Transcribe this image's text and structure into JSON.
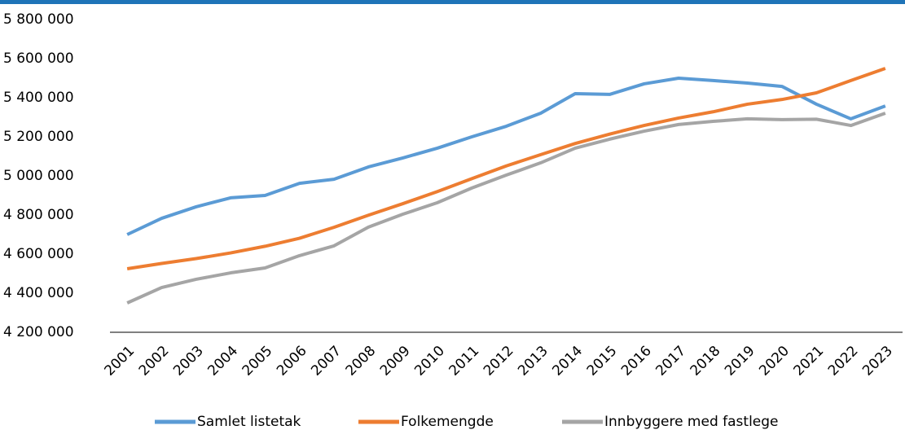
{
  "chart_data": {
    "type": "line",
    "categories": [
      "2001",
      "2002",
      "2003",
      "2004",
      "2005",
      "2006",
      "2007",
      "2008",
      "2009",
      "2010",
      "2011",
      "2012",
      "2013",
      "2014",
      "2015",
      "2016",
      "2017",
      "2018",
      "2019",
      "2020",
      "2021",
      "2022",
      "2023"
    ],
    "series": [
      {
        "name": "Samlet listetak",
        "color": "#5b9bd5",
        "values": [
          4700000,
          4783000,
          4842000,
          4888000,
          4900000,
          4962000,
          4983000,
          5046000,
          5092000,
          5142000,
          5200000,
          5254000,
          5321000,
          5421000,
          5417000,
          5471000,
          5500000,
          5488000,
          5475000,
          5458000,
          5367000,
          5292000,
          5358000
        ]
      },
      {
        "name": "Folkemengde",
        "color": "#ed7d31",
        "values": [
          4525000,
          4552000,
          4577000,
          4606000,
          4640000,
          4681000,
          4737000,
          4799000,
          4858000,
          4920000,
          4986000,
          5051000,
          5109000,
          5166000,
          5214000,
          5258000,
          5296000,
          5328000,
          5367000,
          5391000,
          5425000,
          5488000,
          5550000
        ]
      },
      {
        "name": "Innbyggere med fastlege",
        "color": "#a5a5a5",
        "values": [
          4350000,
          4429000,
          4471000,
          4504000,
          4529000,
          4592000,
          4642000,
          4738000,
          4804000,
          4863000,
          4938000,
          5004000,
          5067000,
          5142000,
          5188000,
          5229000,
          5263000,
          5279000,
          5292000,
          5288000,
          5290000,
          5258000,
          5321000
        ]
      }
    ],
    "ylim": [
      4200000,
      5800000
    ],
    "yticks": [
      {
        "value": 4200000,
        "label": "4 200 000"
      },
      {
        "value": 4400000,
        "label": "4 400 000"
      },
      {
        "value": 4600000,
        "label": "4 600 000"
      },
      {
        "value": 4800000,
        "label": "4 800 000"
      },
      {
        "value": 5000000,
        "label": "5 000 000"
      },
      {
        "value": 5200000,
        "label": "5 200 000"
      },
      {
        "value": 5400000,
        "label": "5 400 000"
      },
      {
        "value": 5600000,
        "label": "5 600 000"
      },
      {
        "value": 5800000,
        "label": "5 800 000"
      }
    ],
    "legend": "bottom"
  }
}
